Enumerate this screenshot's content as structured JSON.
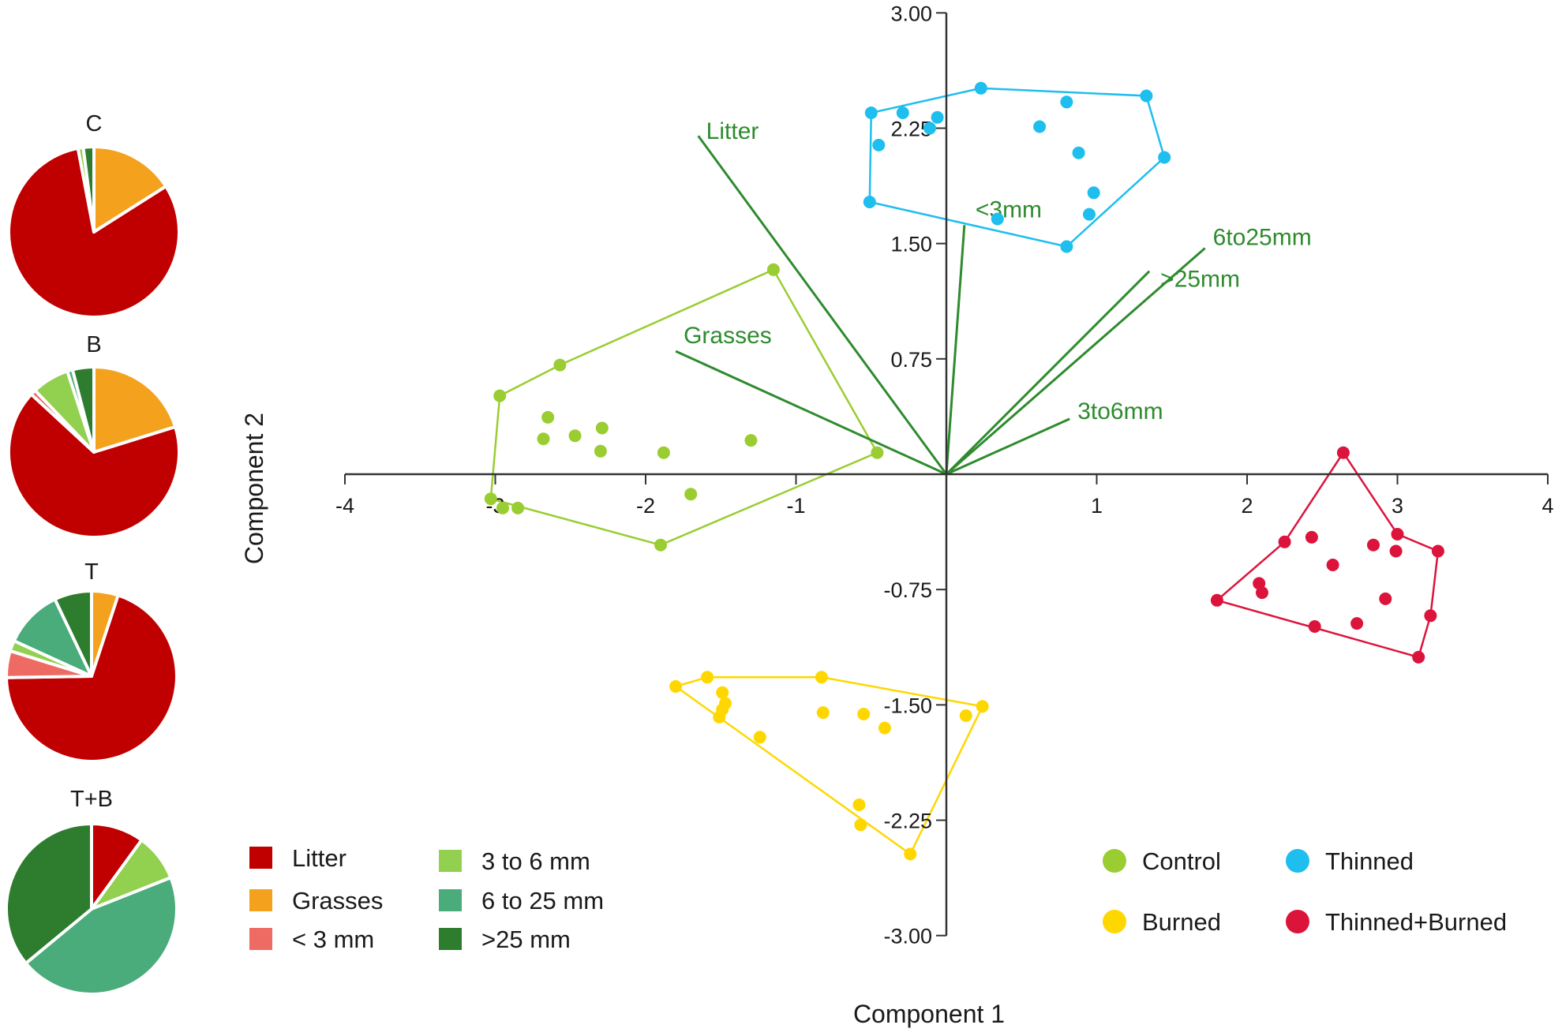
{
  "chart_data": [
    {
      "type": "scatter",
      "xlabel": "Component 1",
      "ylabel": "Component 2",
      "xlim": [
        -4,
        4
      ],
      "ylim": [
        -3,
        3
      ],
      "x_ticks": [
        -4,
        -3,
        -2,
        -1,
        1,
        2,
        3,
        4
      ],
      "x_tick_labels": [
        "-4",
        "-3",
        "-2",
        "-1",
        "1",
        "2",
        "3",
        "4"
      ],
      "y_ticks": [
        3,
        2.25,
        1.5,
        0.75,
        -0.75,
        -1.5,
        -2.25,
        -3
      ],
      "y_tick_labels": [
        "3.00",
        "2.25",
        "1.50",
        "0.75",
        "-0.75",
        "-1.50",
        "-2.25",
        "-3.00"
      ],
      "loadings": [
        {
          "label": "Litter",
          "x": -1.65,
          "y": 2.2
        },
        {
          "label": "Grasses",
          "x": -1.8,
          "y": 0.8
        },
        {
          "label": "<3mm",
          "x": 0.12,
          "y": 1.62
        },
        {
          "label": ">25mm",
          "x": 1.35,
          "y": 1.32
        },
        {
          "label": "6to25mm",
          "x": 1.72,
          "y": 1.47
        },
        {
          "label": "3to6mm",
          "x": 0.82,
          "y": 0.36
        }
      ],
      "series": [
        {
          "name": "Control",
          "color": "#9acd32",
          "x": [
            -1.15,
            -2.57,
            -2.97,
            -3.03,
            -2.95,
            -2.85,
            -2.65,
            -2.68,
            -2.47,
            -2.29,
            -2.3,
            -1.88,
            -1.7,
            -1.3,
            -0.46,
            -1.9
          ],
          "y": [
            1.33,
            0.71,
            0.51,
            -0.16,
            -0.22,
            -0.22,
            0.37,
            0.23,
            0.25,
            0.3,
            0.15,
            0.14,
            -0.13,
            0.22,
            0.14,
            -0.46
          ],
          "hull": [
            [
              -1.15,
              1.33
            ],
            [
              -2.57,
              0.71
            ],
            [
              -2.97,
              0.51
            ],
            [
              -3.03,
              -0.16
            ],
            [
              -1.9,
              -0.46
            ],
            [
              -0.46,
              0.14
            ]
          ]
        },
        {
          "name": "Thinned",
          "color": "#1ebeef",
          "x": [
            -0.5,
            -0.29,
            -0.11,
            -0.06,
            -0.45,
            0.23,
            0.8,
            0.62,
            1.33,
            0.88,
            1.45,
            0.98,
            0.95,
            0.34,
            0.8,
            -0.51
          ],
          "y": [
            2.35,
            2.35,
            2.25,
            2.32,
            2.14,
            2.51,
            2.42,
            2.26,
            2.46,
            2.09,
            2.06,
            1.83,
            1.69,
            1.66,
            1.48,
            1.77
          ],
          "hull": [
            [
              -0.5,
              2.35
            ],
            [
              0.23,
              2.51
            ],
            [
              1.33,
              2.46
            ],
            [
              1.45,
              2.06
            ],
            [
              0.8,
              1.48
            ],
            [
              -0.51,
              1.77
            ]
          ]
        },
        {
          "name": "Burned",
          "color": "#ffd700",
          "x": [
            -1.8,
            -1.59,
            -1.49,
            -1.47,
            -1.49,
            -1.51,
            -1.24,
            -0.83,
            -0.82,
            -0.55,
            -0.41,
            -0.58,
            -0.57,
            -0.24,
            0.13,
            0.24
          ],
          "y": [
            -1.38,
            -1.32,
            -1.42,
            -1.49,
            -1.53,
            -1.58,
            -1.71,
            -1.32,
            -1.55,
            -1.56,
            -1.65,
            -2.15,
            -2.28,
            -2.47,
            -1.57,
            -1.51
          ],
          "hull": [
            [
              -1.8,
              -1.38
            ],
            [
              -1.59,
              -1.32
            ],
            [
              -0.83,
              -1.32
            ],
            [
              0.24,
              -1.51
            ],
            [
              -0.24,
              -2.47
            ]
          ]
        },
        {
          "name": "Thinned+Burned",
          "color": "#dc143c",
          "x": [
            2.64,
            2.25,
            2.43,
            2.84,
            3.0,
            2.99,
            3.27,
            2.57,
            2.08,
            2.1,
            1.8,
            2.45,
            2.73,
            2.92,
            3.22,
            3.14
          ],
          "y": [
            0.14,
            -0.44,
            -0.41,
            -0.46,
            -0.39,
            -0.5,
            -0.5,
            -0.59,
            -0.71,
            -0.77,
            -0.82,
            -0.99,
            -0.97,
            -0.81,
            -0.92,
            -1.19
          ],
          "hull": [
            [
              2.64,
              0.14
            ],
            [
              3.0,
              -0.39
            ],
            [
              3.27,
              -0.5
            ],
            [
              3.22,
              -0.92
            ],
            [
              3.14,
              -1.19
            ],
            [
              1.8,
              -0.82
            ],
            [
              2.25,
              -0.44
            ]
          ]
        }
      ],
      "legend": [
        {
          "label": "Control",
          "color": "#9acd32"
        },
        {
          "label": "Thinned",
          "color": "#1ebeef"
        },
        {
          "label": "Burned",
          "color": "#ffd700"
        },
        {
          "label": "Thinned+Burned",
          "color": "#dc143c"
        }
      ]
    },
    {
      "type": "pie",
      "title": "C",
      "categories": [
        "Grasses",
        "Litter",
        "3 to 6 mm",
        ">25 mm"
      ],
      "values": [
        0.16,
        0.81,
        0.01,
        0.02
      ]
    },
    {
      "type": "pie",
      "title": "B",
      "categories": [
        "Grasses",
        "Litter",
        "< 3 mm",
        "3 to 6 mm",
        "6 to 25 mm",
        ">25 mm"
      ],
      "values": [
        0.2,
        0.66,
        0.01,
        0.07,
        0.01,
        0.04
      ]
    },
    {
      "type": "pie",
      "title": "T",
      "categories": [
        "Grasses",
        "Litter",
        "< 3 mm",
        "3 to 6 mm",
        "6 to 25 mm",
        ">25 mm"
      ],
      "values": [
        0.05,
        0.69,
        0.05,
        0.02,
        0.11,
        0.07
      ]
    },
    {
      "type": "pie",
      "title": "T+B",
      "categories": [
        "Litter",
        "3 to 6 mm",
        "6 to 25 mm",
        ">25 mm"
      ],
      "values": [
        0.1,
        0.09,
        0.45,
        0.36
      ]
    }
  ],
  "pie_legend": [
    {
      "label": "Litter",
      "color": "#c00000"
    },
    {
      "label": "Grasses",
      "color": "#f4a21e"
    },
    {
      "label": "< 3 mm",
      "color": "#ee6b63"
    },
    {
      "label": "3 to 6 mm",
      "color": "#92d050"
    },
    {
      "label": "6 to 25 mm",
      "color": "#4aab7b"
    },
    {
      "label": ">25 mm",
      "color": "#2e7d2e"
    }
  ],
  "colors": {
    "loading_line": "#2e8b2e",
    "axis": "#333333"
  }
}
